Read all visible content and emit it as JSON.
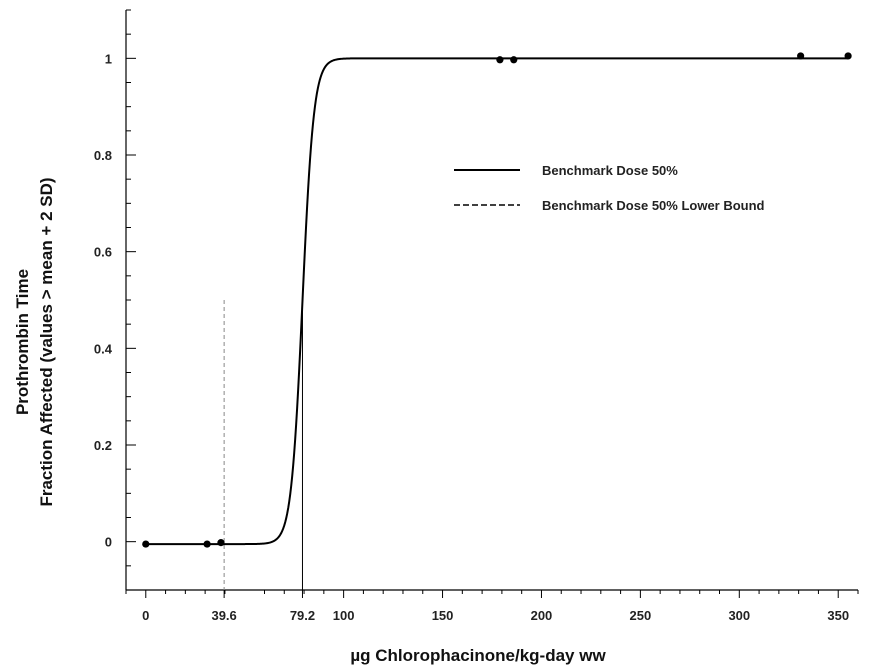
{
  "chart_data": {
    "type": "line",
    "xlabel": "µg Chlorophacinone/kg-day ww",
    "ylabel": [
      "Prothrombin Time",
      "Fraction Affected (values > mean + 2 SD)"
    ],
    "xlim": [
      -10,
      360
    ],
    "ylim": [
      -0.1,
      1.1
    ],
    "x_ticks": [
      {
        "value": 0,
        "label": "0"
      },
      {
        "value": 39.6,
        "label": "39.6"
      },
      {
        "value": 79.2,
        "label": "79.2"
      },
      {
        "value": 100,
        "label": "100"
      },
      {
        "value": 150,
        "label": "150"
      },
      {
        "value": 200,
        "label": "200"
      },
      {
        "value": 250,
        "label": "250"
      },
      {
        "value": 300,
        "label": "300"
      },
      {
        "value": 350,
        "label": "350"
      }
    ],
    "y_ticks": [
      {
        "value": 0,
        "label": "0"
      },
      {
        "value": 0.2,
        "label": "0.2"
      },
      {
        "value": 0.4,
        "label": "0.4"
      },
      {
        "value": 0.6,
        "label": "0.6"
      },
      {
        "value": 0.8,
        "label": "0.8"
      },
      {
        "value": 1,
        "label": "1"
      }
    ],
    "observed_points": [
      {
        "x": 0,
        "y": -0.005
      },
      {
        "x": 31,
        "y": -0.005
      },
      {
        "x": 38,
        "y": -0.002
      },
      {
        "x": 179,
        "y": 0.997
      },
      {
        "x": 186,
        "y": 0.997
      },
      {
        "x": 331,
        "y": 1.005
      },
      {
        "x": 355,
        "y": 1.005
      }
    ],
    "fitted_curve": {
      "model": "logistic",
      "bmd50": 79.2,
      "slope_per_unit": 0.35,
      "baseline": -0.005,
      "x_start": 0,
      "x_end": 355
    },
    "reference_lines": [
      {
        "name": "Benchmark Dose 50%",
        "x": 79.2,
        "y_from": -0.1,
        "y_to": 0.5,
        "style": "solid"
      },
      {
        "name": "Benchmark Dose 50% Lower Bound",
        "x": 39.6,
        "y_from": -0.1,
        "y_to": 0.5,
        "style": "dashed"
      }
    ],
    "legend": {
      "position": "right-center",
      "entries": [
        {
          "label": "Benchmark Dose 50%",
          "style": "solid"
        },
        {
          "label": "Benchmark Dose 50% Lower Bound",
          "style": "dashed"
        }
      ]
    }
  }
}
